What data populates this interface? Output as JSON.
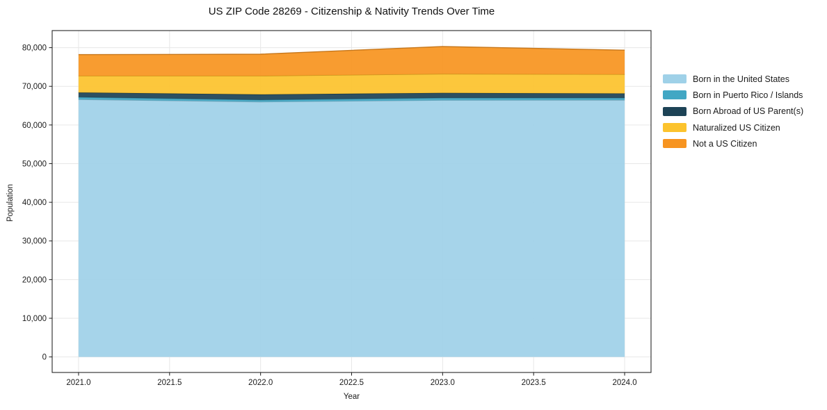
{
  "title": "US ZIP Code 28269 - Citizenship & Nativity Trends Over Time",
  "chart_data": {
    "type": "area",
    "stacked": true,
    "title": "US ZIP Code 28269 - Citizenship & Nativity Trends Over Time",
    "xlabel": "Year",
    "ylabel": "Population",
    "x": [
      2021,
      2022,
      2023,
      2024
    ],
    "series": [
      {
        "name": "Born in the United States",
        "color": "#9fd1e8",
        "values": [
          66600,
          66000,
          66400,
          66450
        ]
      },
      {
        "name": "Born in Puerto Rico / Islands",
        "color": "#41a7c4",
        "values": [
          600,
          500,
          600,
          550
        ]
      },
      {
        "name": "Born Abroad of US Parent(s)",
        "color": "#1d4356",
        "values": [
          1200,
          1400,
          1300,
          1150
        ]
      },
      {
        "name": "Naturalized US Citizen",
        "color": "#fcc32d",
        "values": [
          4300,
          4800,
          4900,
          4950
        ]
      },
      {
        "name": "Not a US Citizen",
        "color": "#f79420",
        "values": [
          5500,
          5600,
          7100,
          6250
        ]
      }
    ],
    "stacked_totals": [
      78200,
      78300,
      80300,
      79350
    ],
    "xlim": [
      2020.855,
      2024.145
    ],
    "ylim": [
      -4020,
      84420
    ],
    "xticks": {
      "values": [
        2021.0,
        2021.5,
        2022.0,
        2022.5,
        2023.0,
        2023.5,
        2024.0
      ],
      "labels": [
        "2021.0",
        "2021.5",
        "2022.0",
        "2022.5",
        "2023.0",
        "2023.5",
        "2024.0"
      ]
    },
    "yticks": {
      "values": [
        0,
        10000,
        20000,
        30000,
        40000,
        50000,
        60000,
        70000,
        80000
      ],
      "labels": [
        "0",
        "10,000",
        "20,000",
        "30,000",
        "40,000",
        "50,000",
        "60,000",
        "70,000",
        "80,000"
      ]
    },
    "grid": true,
    "grid_color": "#e7e7e7",
    "spine_color": "#262626",
    "legend_position": "right"
  }
}
